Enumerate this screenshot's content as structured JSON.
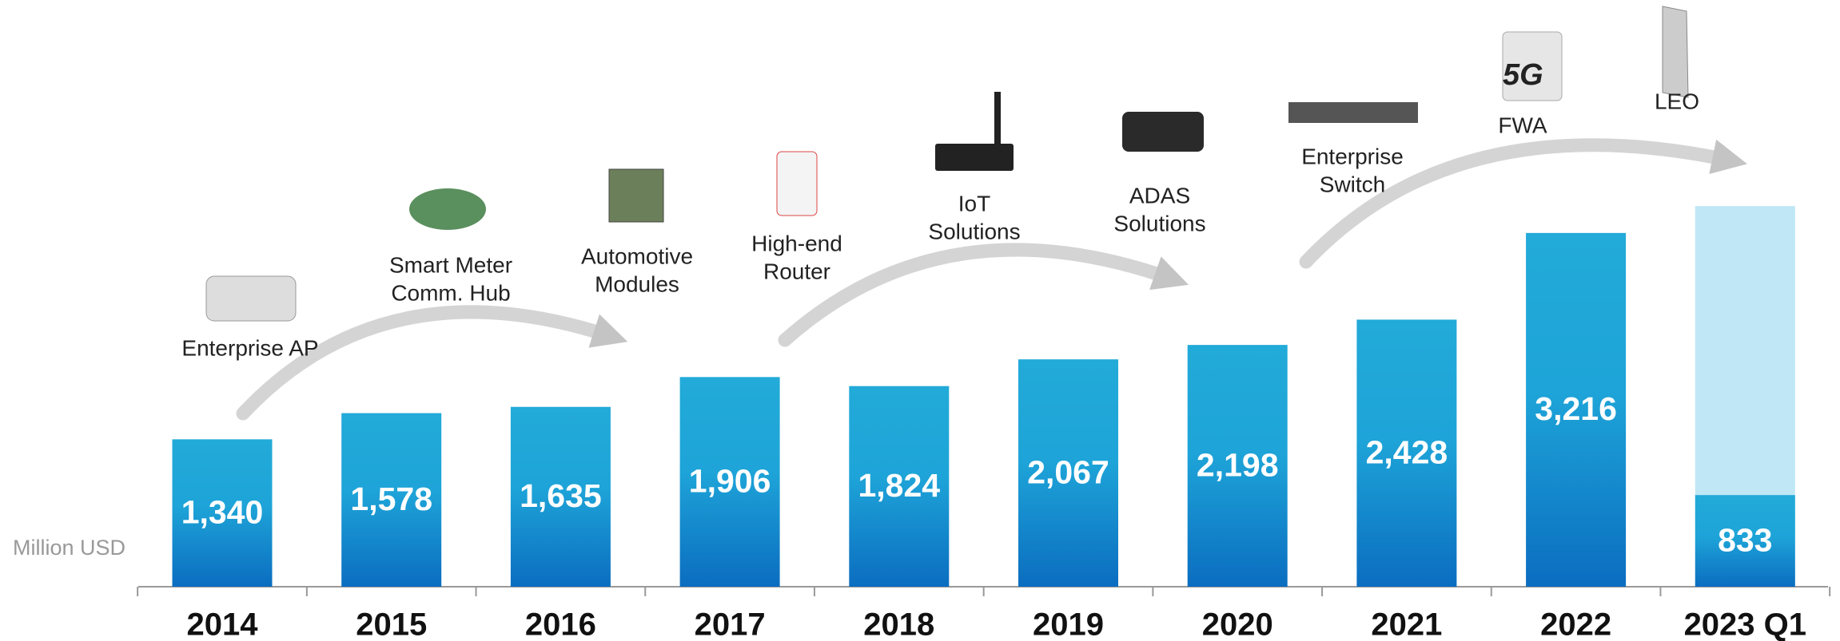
{
  "chart_data": {
    "type": "bar",
    "y_label": "Million USD",
    "categories": [
      "2014",
      "2015",
      "2016",
      "2017",
      "2018",
      "2019",
      "2020",
      "2021",
      "2022",
      "2023 Q1"
    ],
    "series": [
      {
        "color": "#bfe7f6",
        "values": [
          null,
          null,
          null,
          null,
          null,
          null,
          null,
          null,
          null,
          3460
        ]
      },
      {
        "color": "#1ea4d8",
        "values": [
          1340,
          1578,
          1635,
          1906,
          1824,
          2067,
          2198,
          2428,
          3216,
          833
        ],
        "value_labels": [
          "1,340",
          "1,578",
          "1,635",
          "1,906",
          "1,824",
          "2,067",
          "2,198",
          "2,428",
          "3,216",
          "833"
        ]
      }
    ],
    "ylim": [
      0,
      5000
    ],
    "annotations": [
      [
        "Enterprise AP"
      ],
      [
        "Smart Meter",
        "Comm. Hub"
      ],
      [
        "Automotive",
        "Modules"
      ],
      [
        "High-end",
        "Router"
      ],
      [
        "IoT",
        "Solutions"
      ],
      [
        "ADAS",
        "Solutions"
      ],
      [
        "Enterprise",
        "Switch"
      ],
      [
        "FWA"
      ],
      [
        "LEO"
      ]
    ]
  }
}
